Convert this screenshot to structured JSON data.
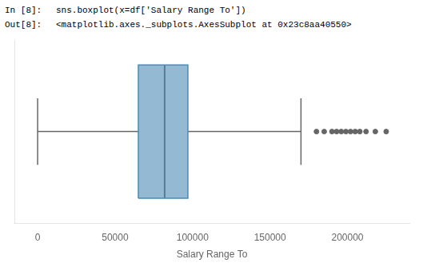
{
  "chart_data": {
    "type": "box",
    "annotations": [
      "In [8]:",
      "sns.boxplot(x=df['Salary Range To'])",
      "Out[8]:",
      "<matplotlib.axes._subplots.AxesSubplot at 0x23c8aa40550>"
    ],
    "xlabel": "Salary Range To",
    "xlim": [
      -15000,
      240000
    ],
    "xticks": [
      0,
      50000,
      100000,
      150000,
      200000
    ],
    "q1": 65000,
    "median": 82000,
    "q3": 97000,
    "whisker_low": 0,
    "whisker_high": 170000,
    "outliers": [
      180000,
      185000,
      190000,
      193000,
      196000,
      199000,
      202000,
      205000,
      208000,
      212000,
      218000,
      225000
    ],
    "color": "#4c8ab5",
    "tick_labels": "x",
    "grid": false
  }
}
